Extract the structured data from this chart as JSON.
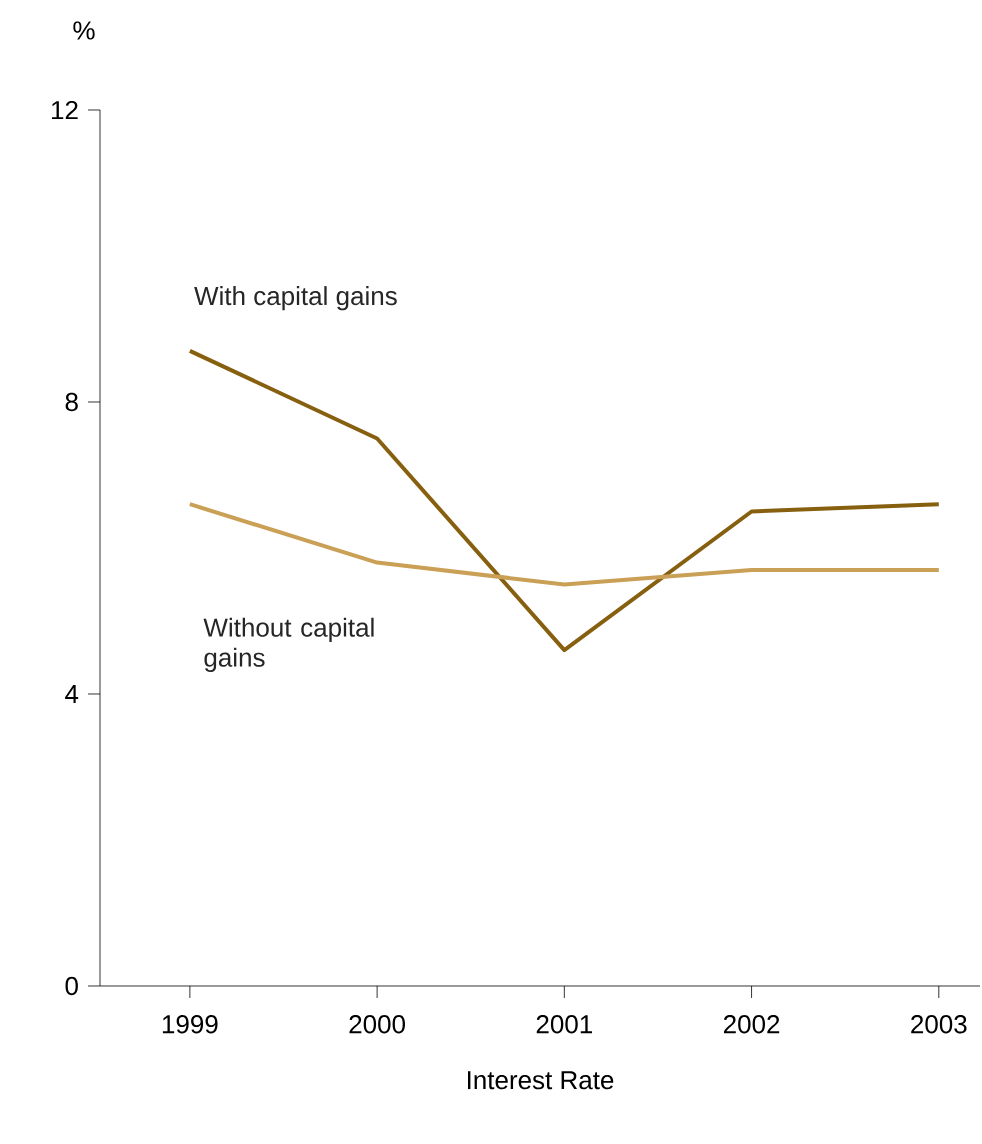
{
  "chart_data": {
    "type": "line",
    "xlabel": "Interest Rate",
    "ylabel": "%",
    "categories": [
      "1999",
      "2000",
      "2001",
      "2002",
      "2003"
    ],
    "series": [
      {
        "name": "With capital gains",
        "color": "#87600f",
        "values": [
          8.7,
          7.5,
          4.6,
          6.5,
          6.6
        ]
      },
      {
        "name": "Without capital gains",
        "color": "#c9a055",
        "values": [
          6.6,
          5.8,
          5.5,
          5.7,
          5.7
        ]
      }
    ],
    "ylim": [
      0,
      12
    ],
    "yticks": [
      0,
      4,
      8,
      12
    ],
    "grid": false,
    "legend": false,
    "marker": "none",
    "line_style": "solid"
  }
}
